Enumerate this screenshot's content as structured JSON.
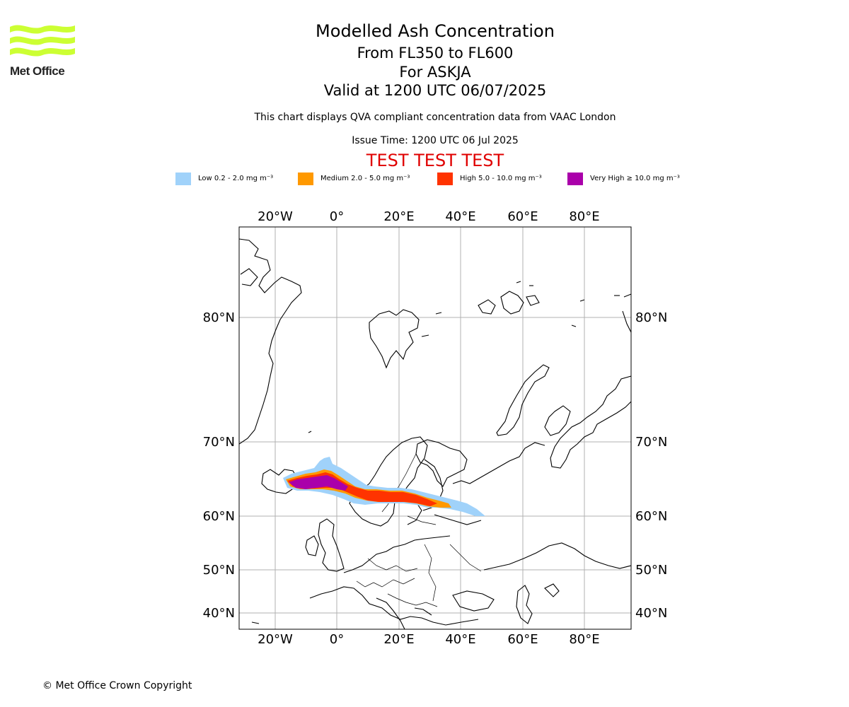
{
  "logo": {
    "text": "Met Office",
    "color": "#ccff33"
  },
  "title": {
    "line1": "Modelled Ash Concentration",
    "line2": "From FL350 to FL600",
    "line3": "For ASKJA",
    "line4": "Valid at 1200 UTC 06/07/2025"
  },
  "subtitle": "This chart displays QVA compliant concentration data from VAAC London",
  "issue_time": "Issue Time: 1200 UTC 06 Jul 2025",
  "test_banner": "TEST TEST TEST",
  "legend": [
    {
      "label": "Low 0.2 - 2.0 mg m⁻³",
      "color": "#a0d2fa"
    },
    {
      "label": "Medium 2.0 - 5.0 mg m⁻³",
      "color": "#ff9900"
    },
    {
      "label": "High 5.0 - 10.0 mg m⁻³",
      "color": "#ff3300"
    },
    {
      "label": "Very High ≥ 10.0 mg m⁻³",
      "color": "#aa00aa"
    }
  ],
  "map": {
    "lon_ticks": [
      "20°W",
      "0°",
      "20°E",
      "40°E",
      "60°E",
      "80°E"
    ],
    "lat_ticks": [
      "80°N",
      "70°N",
      "60°N",
      "50°N",
      "40°N"
    ]
  },
  "copyright": "© Met Office Crown Copyright"
}
